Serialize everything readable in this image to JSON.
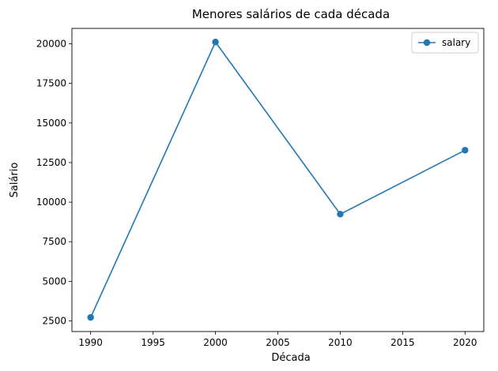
{
  "chart_data": {
    "type": "line",
    "title": "Menores salários de cada década",
    "xlabel": "Década",
    "ylabel": "Salário",
    "xlim": [
      1988.5,
      2021.5
    ],
    "ylim": [
      1830,
      20970
    ],
    "xticks": [
      1990,
      1995,
      2000,
      2005,
      2010,
      2015,
      2020
    ],
    "yticks": [
      2500,
      5000,
      7500,
      10000,
      12500,
      15000,
      17500,
      20000
    ],
    "grid": false,
    "legend_position": "top-right",
    "series": [
      {
        "name": "salary",
        "color": "#1f77b4",
        "marker": "circle",
        "x": [
          1990,
          2000,
          2010,
          2020
        ],
        "y": [
          2720,
          20110,
          9240,
          13280
        ]
      }
    ]
  }
}
